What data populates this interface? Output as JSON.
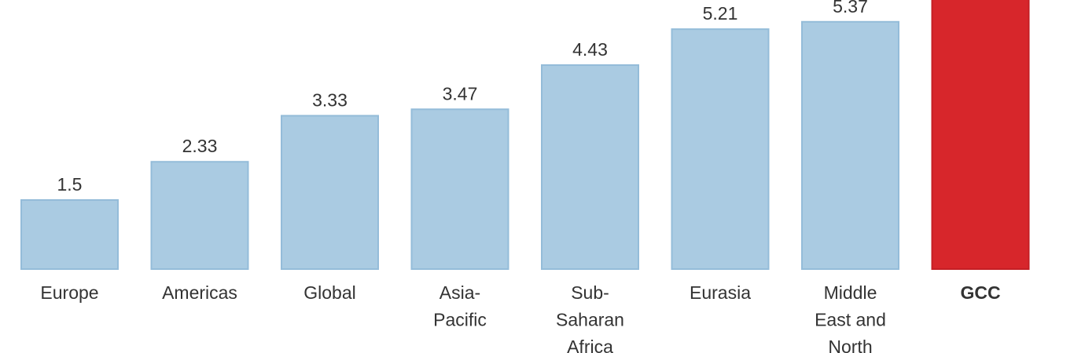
{
  "chart_data": {
    "type": "bar",
    "title": "",
    "xlabel": "",
    "ylabel": "",
    "categories": [
      [
        "Europe"
      ],
      [
        "Americas"
      ],
      [
        "Global"
      ],
      [
        "Asia-",
        "Pacific"
      ],
      [
        "Sub-",
        "Saharan",
        "Africa"
      ],
      [
        "Eurasia"
      ],
      [
        "Middle",
        "East and",
        "North"
      ],
      [
        "GCC"
      ]
    ],
    "values": [
      1.5,
      2.33,
      3.33,
      3.47,
      4.43,
      5.21,
      5.37,
      null
    ],
    "value_labels": [
      "1.5",
      "2.33",
      "3.33",
      "3.47",
      "4.43",
      "5.21",
      "5.37",
      ""
    ],
    "highlight_index": 7,
    "highlight_clipped_above": true,
    "grid": false,
    "colors": {
      "bar": "#aacbe2",
      "bar_edge": "#94bcd9",
      "highlight": "#d7262b",
      "highlight_edge": "#c41f24",
      "text": "#333333"
    }
  }
}
